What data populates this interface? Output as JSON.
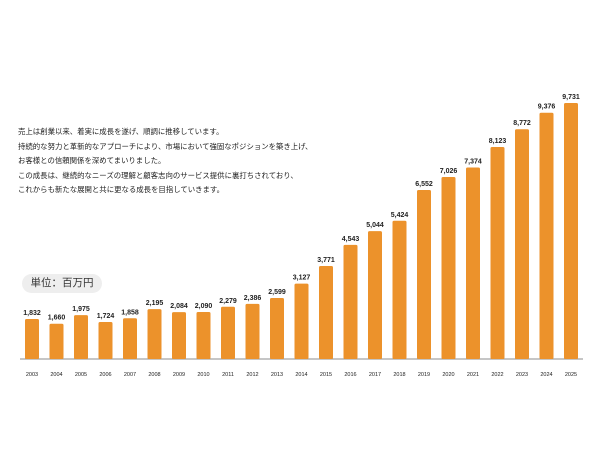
{
  "description": [
    "売上は創業以来、着実に成長を遂げ、順調に推移しています。",
    "持続的な努力と革新的なアプローチにより、市場において強固なポジションを築き上げ、",
    "お客様との信頼関係を深めてまいりました。",
    "この成長は、継続的なニーズの理解と顧客志向のサービス提供に裏打ちされており、",
    "これからも新たな展開と共に更なる成長を目指していきます。"
  ],
  "chart_data": {
    "type": "bar",
    "unit_label": "単位：百万円",
    "categories": [
      "2003",
      "2004",
      "2005",
      "2006",
      "2007",
      "2008",
      "2009",
      "2010",
      "2011",
      "2012",
      "2013",
      "2014",
      "2015",
      "2016",
      "2017",
      "2018",
      "2019",
      "2020",
      "2021",
      "2022",
      "2023",
      "2024",
      "2025"
    ],
    "values": [
      1832,
      1660,
      1975,
      1724,
      1858,
      2195,
      2084,
      2090,
      2279,
      2386,
      2599,
      3127,
      3771,
      4543,
      5044,
      5424,
      6552,
      7026,
      7374,
      8123,
      8772,
      9376,
      9731
    ],
    "value_labels": [
      "1,832",
      "1,660",
      "1,975",
      "1,724",
      "1,858",
      "2,195",
      "2,084",
      "2,090",
      "2,279",
      "2,386",
      "2,599",
      "3,127",
      "3,771",
      "4,543",
      "5,044",
      "5,424",
      "6,552",
      "7,026",
      "7,374",
      "8,123",
      "8,772",
      "9,376",
      "9,731"
    ],
    "bar_color": "#EC922B",
    "grid": false,
    "legend": "none"
  }
}
